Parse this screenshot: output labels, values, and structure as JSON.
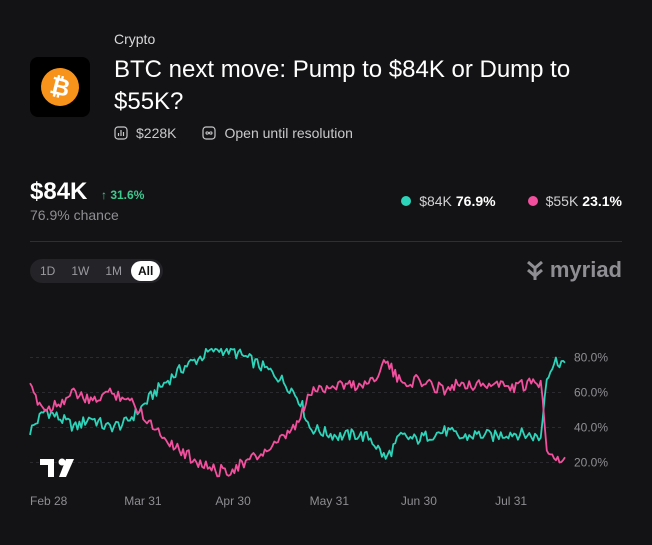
{
  "market": {
    "category": "Crypto",
    "title": "BTC next move: Pump to $84K or Dump to $55K?",
    "volume": "$228K",
    "status": "Open until resolution",
    "icon": "bitcoin-icon"
  },
  "summary": {
    "price": "$84K",
    "change": "↑ 31.6%",
    "chance": "76.9% chance"
  },
  "legend": [
    {
      "label": "$84K",
      "pct": "76.9%",
      "color": "#2dd4b9"
    },
    {
      "label": "$55K",
      "pct": "23.1%",
      "color": "#f2509e"
    }
  ],
  "tabs": [
    "1D",
    "1W",
    "1M",
    "All"
  ],
  "active_tab": "All",
  "brand": "myriad",
  "colors": {
    "accent_up": "#3ec98f",
    "teal": "#2dd4b9",
    "pink": "#f2509e",
    "background": "#131315"
  },
  "chart_data": {
    "type": "line",
    "x_ticks": [
      "Feb 28",
      "Mar 31",
      "Apr 30",
      "May 31",
      "Jun 30",
      "Jul 31"
    ],
    "y_ticks": [
      "80.0%",
      "60.0%",
      "40.0%",
      "20.0%"
    ],
    "ylim": [
      10,
      90
    ],
    "grid": "horizontal dashed",
    "series": [
      {
        "name": "$84K",
        "color": "#2dd4b9",
        "points": [
          [
            "Feb 28",
            38
          ],
          [
            "Mar 5",
            50
          ],
          [
            "Mar 10",
            45
          ],
          [
            "Mar 15",
            40
          ],
          [
            "Mar 20",
            46
          ],
          [
            "Mar 25",
            40
          ],
          [
            "Mar 31",
            42
          ],
          [
            "Apr 5",
            50
          ],
          [
            "Apr 10",
            60
          ],
          [
            "Apr 15",
            68
          ],
          [
            "Apr 20",
            75
          ],
          [
            "Apr 25",
            80
          ],
          [
            "Apr 30",
            85
          ],
          [
            "May 5",
            84
          ],
          [
            "May 10",
            80
          ],
          [
            "May 15",
            75
          ],
          [
            "May 20",
            70
          ],
          [
            "May 25",
            62
          ],
          [
            "May 28",
            55
          ],
          [
            "May 31",
            40
          ],
          [
            "Jun 5",
            37
          ],
          [
            "Jun 10",
            35
          ],
          [
            "Jun 15",
            36
          ],
          [
            "Jun 20",
            34
          ],
          [
            "Jun 25",
            22
          ],
          [
            "Jun 30",
            35
          ],
          [
            "Jul 5",
            33
          ],
          [
            "Jul 10",
            36
          ],
          [
            "Jul 15",
            38
          ],
          [
            "Jul 20",
            34
          ],
          [
            "Jul 25",
            36
          ],
          [
            "Jul 31",
            35
          ],
          [
            "Aug 5",
            37
          ],
          [
            "Aug 10",
            36
          ],
          [
            "Aug 15",
            34
          ],
          [
            "Aug 17",
            70
          ],
          [
            "Aug 20",
            78
          ],
          [
            "Aug 23",
            77
          ]
        ]
      },
      {
        "name": "$55K",
        "color": "#f2509e",
        "points": [
          [
            "Feb 28",
            62
          ],
          [
            "Mar 5",
            50
          ],
          [
            "Mar 10",
            55
          ],
          [
            "Mar 15",
            60
          ],
          [
            "Mar 20",
            54
          ],
          [
            "Mar 25",
            60
          ],
          [
            "Mar 31",
            58
          ],
          [
            "Apr 5",
            50
          ],
          [
            "Apr 10",
            40
          ],
          [
            "Apr 15",
            32
          ],
          [
            "Apr 20",
            25
          ],
          [
            "Apr 25",
            20
          ],
          [
            "Apr 30",
            15
          ],
          [
            "May 5",
            16
          ],
          [
            "May 10",
            20
          ],
          [
            "May 15",
            25
          ],
          [
            "May 20",
            30
          ],
          [
            "May 25",
            38
          ],
          [
            "May 28",
            45
          ],
          [
            "May 31",
            60
          ],
          [
            "Jun 5",
            63
          ],
          [
            "Jun 10",
            65
          ],
          [
            "Jun 15",
            64
          ],
          [
            "Jun 20",
            66
          ],
          [
            "Jun 25",
            78
          ],
          [
            "Jun 30",
            65
          ],
          [
            "Jul 5",
            67
          ],
          [
            "Jul 10",
            64
          ],
          [
            "Jul 15",
            62
          ],
          [
            "Jul 20",
            66
          ],
          [
            "Jul 25",
            64
          ],
          [
            "Jul 31",
            65
          ],
          [
            "Aug 5",
            63
          ],
          [
            "Aug 10",
            64
          ],
          [
            "Aug 15",
            66
          ],
          [
            "Aug 17",
            30
          ],
          [
            "Aug 20",
            22
          ],
          [
            "Aug 23",
            23
          ]
        ]
      }
    ]
  }
}
